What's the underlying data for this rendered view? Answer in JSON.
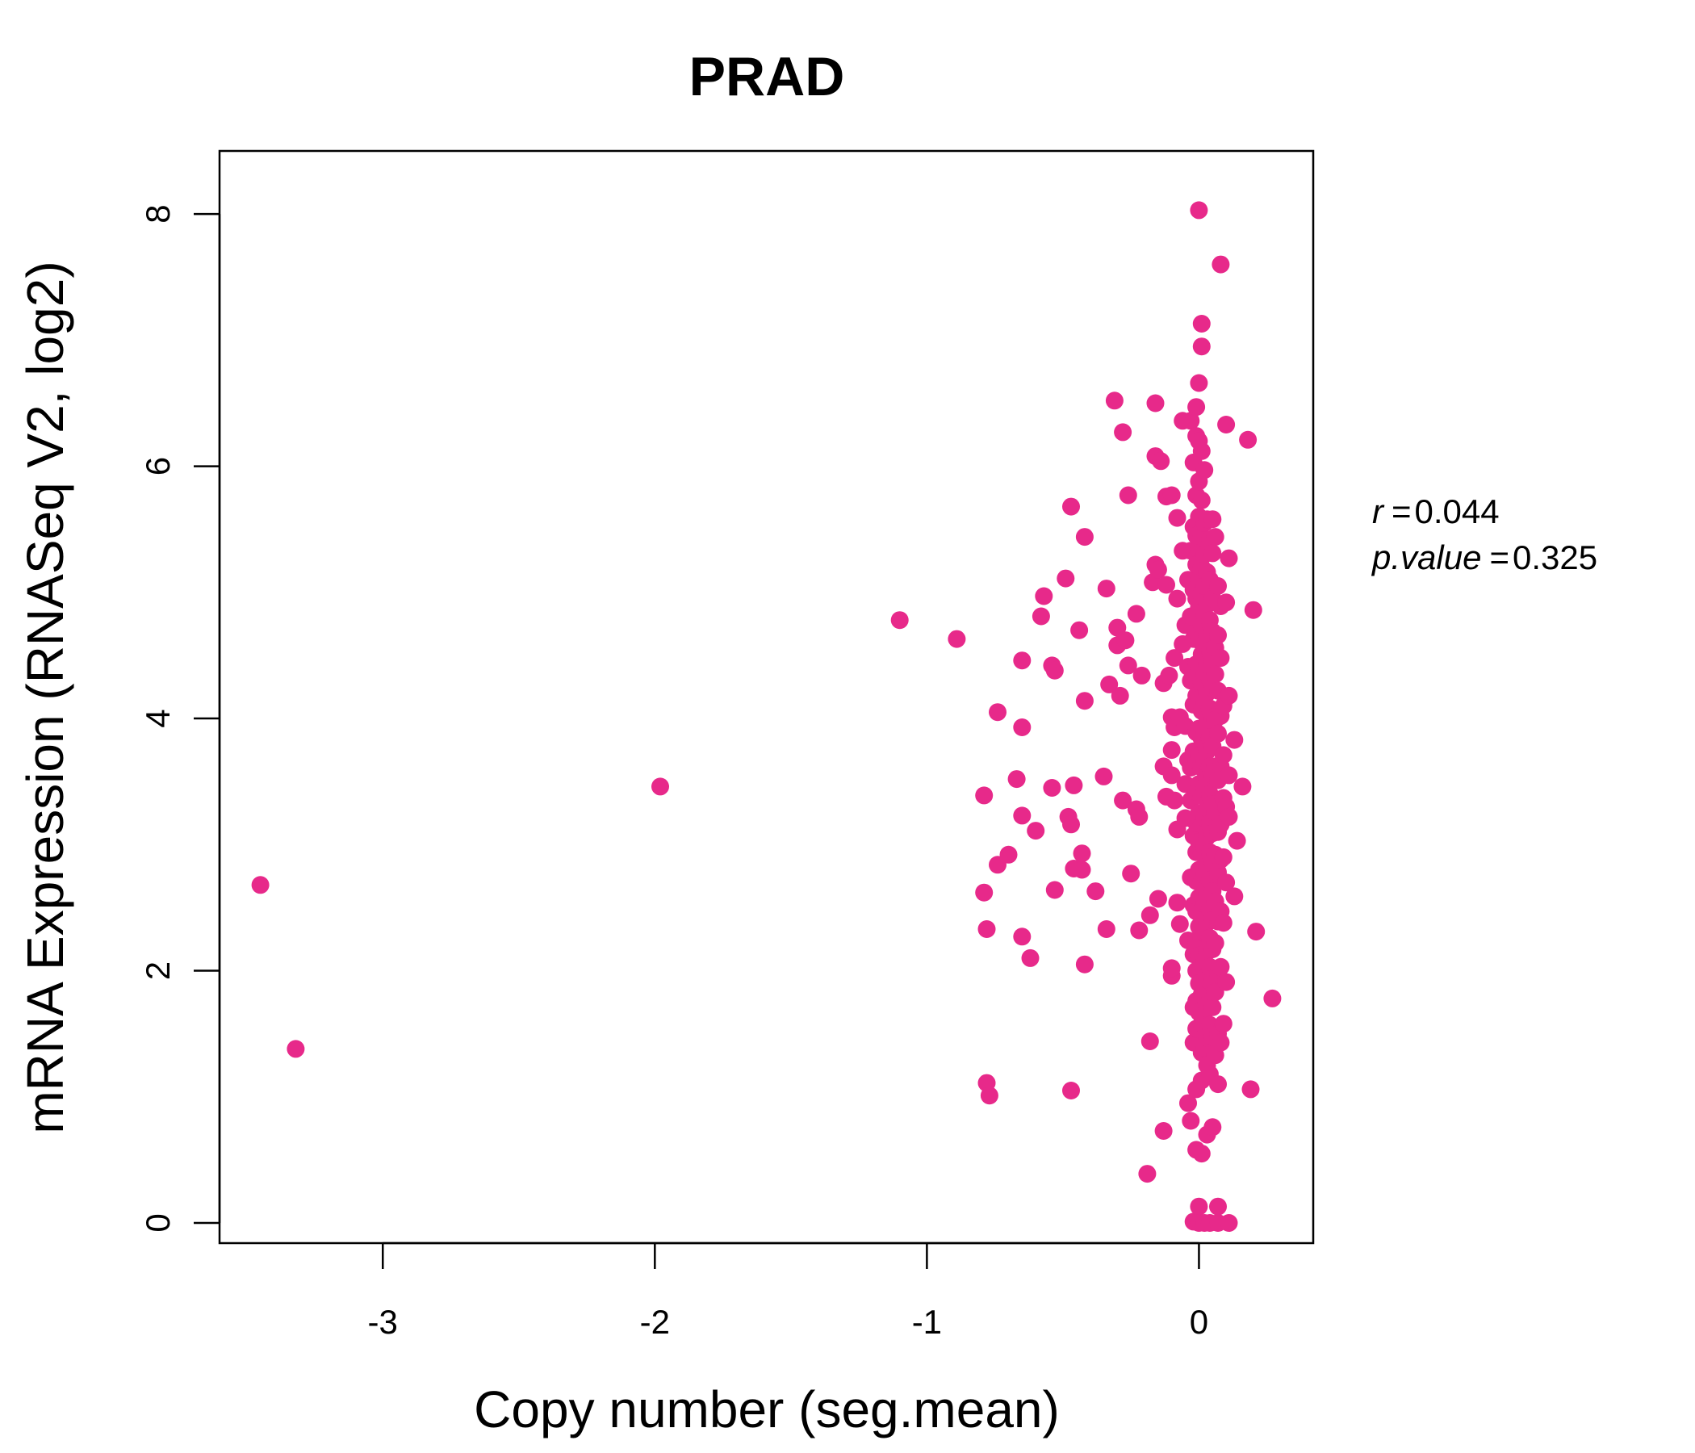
{
  "chart_data": {
    "type": "scatter",
    "title": "PRAD",
    "xlabel": "Copy number (seg.mean)",
    "ylabel": "mRNA Expression (RNASeq V2, log2)",
    "xlim": [
      -3.6,
      0.42
    ],
    "ylim": [
      -0.16,
      8.5
    ],
    "xticks": [
      -3,
      -2,
      -1,
      0
    ],
    "xtick_labels": [
      "-3",
      "-2",
      "-1",
      "0"
    ],
    "yticks": [
      0,
      2,
      4,
      6,
      8
    ],
    "ytick_labels": [
      "0",
      "2",
      "4",
      "6",
      "8"
    ],
    "grid": false,
    "legend": "none",
    "point_color": "#E7298A",
    "title_color": "#E7298A",
    "stats": {
      "r_label": "r",
      "r_value": "0.044",
      "p_label": "p.value",
      "p_value": "0.325"
    },
    "points": [
      [
        -3.45,
        2.68
      ],
      [
        -3.32,
        1.38
      ],
      [
        -1.98,
        3.46
      ],
      [
        -1.1,
        4.78
      ],
      [
        -0.89,
        4.63
      ],
      [
        -0.79,
        3.39
      ],
      [
        -0.79,
        2.62
      ],
      [
        -0.78,
        2.33
      ],
      [
        -0.78,
        1.11
      ],
      [
        -0.77,
        1.01
      ],
      [
        -0.74,
        4.05
      ],
      [
        -0.74,
        2.84
      ],
      [
        -0.7,
        2.92
      ],
      [
        -0.67,
        3.52
      ],
      [
        -0.65,
        3.93
      ],
      [
        -0.65,
        4.46
      ],
      [
        -0.65,
        3.23
      ],
      [
        -0.65,
        2.27
      ],
      [
        -0.62,
        2.1
      ],
      [
        -0.6,
        3.11
      ],
      [
        -0.58,
        4.81
      ],
      [
        -0.57,
        4.97
      ],
      [
        -0.54,
        4.42
      ],
      [
        -0.54,
        3.45
      ],
      [
        -0.53,
        4.38
      ],
      [
        -0.53,
        2.64
      ],
      [
        -0.49,
        5.11
      ],
      [
        -0.48,
        3.22
      ],
      [
        -0.47,
        3.16
      ],
      [
        -0.47,
        1.05
      ],
      [
        -0.47,
        5.68
      ],
      [
        -0.46,
        2.81
      ],
      [
        -0.46,
        3.47
      ],
      [
        -0.44,
        4.7
      ],
      [
        -0.43,
        2.93
      ],
      [
        -0.43,
        2.8
      ],
      [
        -0.42,
        2.05
      ],
      [
        -0.42,
        4.14
      ],
      [
        -0.42,
        5.44
      ],
      [
        -0.38,
        2.63
      ],
      [
        -0.35,
        3.54
      ],
      [
        -0.34,
        5.03
      ],
      [
        -0.34,
        2.33
      ],
      [
        -0.33,
        4.27
      ],
      [
        -0.31,
        6.52
      ],
      [
        -0.3,
        4.58
      ],
      [
        -0.3,
        4.72
      ],
      [
        -0.29,
        4.18
      ],
      [
        -0.28,
        6.27
      ],
      [
        -0.28,
        3.35
      ],
      [
        -0.27,
        4.62
      ],
      [
        -0.26,
        5.77
      ],
      [
        -0.26,
        4.42
      ],
      [
        -0.25,
        2.77
      ],
      [
        -0.23,
        3.28
      ],
      [
        -0.23,
        4.83
      ],
      [
        -0.22,
        2.32
      ],
      [
        -0.22,
        3.22
      ],
      [
        -0.21,
        4.34
      ],
      [
        -0.19,
        0.39
      ],
      [
        -0.18,
        1.44
      ],
      [
        -0.18,
        2.44
      ],
      [
        -0.17,
        5.08
      ],
      [
        -0.16,
        5.22
      ],
      [
        -0.16,
        6.08
      ],
      [
        -0.16,
        6.5
      ],
      [
        -0.15,
        5.18
      ],
      [
        -0.15,
        2.57
      ],
      [
        -0.14,
        6.04
      ],
      [
        -0.13,
        0.73
      ],
      [
        -0.13,
        4.28
      ],
      [
        -0.13,
        3.62
      ],
      [
        -0.12,
        5.76
      ],
      [
        -0.12,
        3.38
      ],
      [
        -0.12,
        5.06
      ],
      [
        -0.11,
        4.34
      ],
      [
        -0.1,
        5.77
      ],
      [
        -0.1,
        4.01
      ],
      [
        -0.1,
        3.75
      ],
      [
        -0.1,
        3.55
      ],
      [
        -0.1,
        1.96
      ],
      [
        -0.1,
        2.02
      ],
      [
        -0.09,
        3.35
      ],
      [
        -0.09,
        4.48
      ],
      [
        -0.09,
        3.93
      ],
      [
        -0.08,
        5.59
      ],
      [
        -0.08,
        4.95
      ],
      [
        -0.08,
        3.12
      ],
      [
        -0.08,
        2.54
      ],
      [
        -0.07,
        2.37
      ],
      [
        -0.07,
        4.01
      ],
      [
        -0.06,
        5.33
      ],
      [
        -0.06,
        6.36
      ],
      [
        -0.06,
        4.59
      ],
      [
        -0.05,
        4.74
      ],
      [
        -0.05,
        3.94
      ],
      [
        -0.05,
        3.48
      ],
      [
        -0.05,
        3.21
      ],
      [
        -0.04,
        5.1
      ],
      [
        -0.04,
        4.41
      ],
      [
        -0.04,
        3.67
      ],
      [
        -0.04,
        2.24
      ],
      [
        -0.04,
        0.95
      ],
      [
        -0.03,
        6.36
      ],
      [
        -0.03,
        5.33
      ],
      [
        -0.03,
        4.81
      ],
      [
        -0.03,
        4.3
      ],
      [
        -0.03,
        3.61
      ],
      [
        -0.03,
        3.35
      ],
      [
        -0.03,
        2.74
      ],
      [
        -0.03,
        0.81
      ],
      [
        -0.02,
        6.03
      ],
      [
        -0.02,
        5.52
      ],
      [
        -0.02,
        5.02
      ],
      [
        -0.02,
        4.63
      ],
      [
        -0.02,
        4.11
      ],
      [
        -0.02,
        3.74
      ],
      [
        -0.02,
        3.07
      ],
      [
        -0.02,
        2.52
      ],
      [
        -0.02,
        2.13
      ],
      [
        -0.02,
        1.71
      ],
      [
        -0.02,
        1.43
      ],
      [
        -0.02,
        0.01
      ],
      [
        -0.01,
        6.47
      ],
      [
        -0.01,
        6.24
      ],
      [
        -0.01,
        5.77
      ],
      [
        -0.01,
        5.45
      ],
      [
        -0.01,
        5.22
      ],
      [
        -0.01,
        4.95
      ],
      [
        -0.01,
        4.67
      ],
      [
        -0.01,
        4.43
      ],
      [
        -0.01,
        4.18
      ],
      [
        -0.01,
        3.89
      ],
      [
        -0.01,
        3.66
      ],
      [
        -0.01,
        3.42
      ],
      [
        -0.01,
        3.17
      ],
      [
        -0.01,
        2.94
      ],
      [
        -0.01,
        2.71
      ],
      [
        -0.01,
        2.47
      ],
      [
        -0.01,
        2.24
      ],
      [
        -0.01,
        2.0
      ],
      [
        -0.01,
        1.76
      ],
      [
        -0.01,
        1.54
      ],
      [
        -0.01,
        1.06
      ],
      [
        -0.01,
        0.58
      ],
      [
        0.0,
        8.03
      ],
      [
        0.0,
        6.66
      ],
      [
        0.0,
        6.2
      ],
      [
        0.0,
        5.88
      ],
      [
        0.0,
        5.6
      ],
      [
        0.0,
        5.35
      ],
      [
        0.0,
        5.1
      ],
      [
        0.0,
        4.88
      ],
      [
        0.0,
        4.62
      ],
      [
        0.0,
        4.4
      ],
      [
        0.0,
        4.15
      ],
      [
        0.0,
        3.92
      ],
      [
        0.0,
        3.7
      ],
      [
        0.0,
        3.48
      ],
      [
        0.0,
        3.25
      ],
      [
        0.0,
        3.02
      ],
      [
        0.0,
        2.8
      ],
      [
        0.0,
        2.58
      ],
      [
        0.0,
        2.35
      ],
      [
        0.0,
        2.12
      ],
      [
        0.0,
        1.9
      ],
      [
        0.0,
        1.67
      ],
      [
        0.0,
        0.13
      ],
      [
        0.0,
        0.0
      ],
      [
        0.01,
        7.13
      ],
      [
        0.01,
        6.95
      ],
      [
        0.01,
        6.12
      ],
      [
        0.01,
        5.73
      ],
      [
        0.01,
        5.44
      ],
      [
        0.01,
        5.2
      ],
      [
        0.01,
        4.97
      ],
      [
        0.01,
        4.74
      ],
      [
        0.01,
        4.51
      ],
      [
        0.01,
        4.29
      ],
      [
        0.01,
        4.06
      ],
      [
        0.01,
        3.84
      ],
      [
        0.01,
        3.61
      ],
      [
        0.01,
        3.39
      ],
      [
        0.01,
        3.16
      ],
      [
        0.01,
        2.93
      ],
      [
        0.01,
        2.71
      ],
      [
        0.01,
        2.48
      ],
      [
        0.01,
        2.26
      ],
      [
        0.01,
        2.03
      ],
      [
        0.01,
        1.81
      ],
      [
        0.01,
        1.58
      ],
      [
        0.01,
        1.35
      ],
      [
        0.01,
        1.13
      ],
      [
        0.01,
        0.55
      ],
      [
        0.02,
        5.97
      ],
      [
        0.02,
        5.55
      ],
      [
        0.02,
        5.3
      ],
      [
        0.02,
        5.05
      ],
      [
        0.02,
        4.82
      ],
      [
        0.02,
        4.58
      ],
      [
        0.02,
        4.35
      ],
      [
        0.02,
        4.12
      ],
      [
        0.02,
        3.89
      ],
      [
        0.02,
        3.66
      ],
      [
        0.02,
        3.44
      ],
      [
        0.02,
        3.21
      ],
      [
        0.02,
        2.98
      ],
      [
        0.02,
        2.76
      ],
      [
        0.02,
        2.53
      ],
      [
        0.02,
        2.3
      ],
      [
        0.02,
        2.07
      ],
      [
        0.02,
        1.84
      ],
      [
        0.02,
        1.61
      ],
      [
        0.02,
        1.39
      ],
      [
        0.02,
        0.0
      ],
      [
        0.03,
        5.58
      ],
      [
        0.03,
        5.16
      ],
      [
        0.03,
        4.9
      ],
      [
        0.03,
        4.66
      ],
      [
        0.03,
        4.43
      ],
      [
        0.03,
        4.2
      ],
      [
        0.03,
        3.97
      ],
      [
        0.03,
        3.74
      ],
      [
        0.03,
        3.52
      ],
      [
        0.03,
        3.29
      ],
      [
        0.03,
        3.06
      ],
      [
        0.03,
        2.83
      ],
      [
        0.03,
        2.61
      ],
      [
        0.03,
        2.38
      ],
      [
        0.03,
        2.15
      ],
      [
        0.03,
        1.93
      ],
      [
        0.03,
        1.7
      ],
      [
        0.03,
        1.47
      ],
      [
        0.03,
        1.25
      ],
      [
        0.03,
        0.7
      ],
      [
        0.04,
        5.42
      ],
      [
        0.04,
        5.1
      ],
      [
        0.04,
        4.78
      ],
      [
        0.04,
        4.54
      ],
      [
        0.04,
        4.31
      ],
      [
        0.04,
        4.08
      ],
      [
        0.04,
        3.85
      ],
      [
        0.04,
        3.62
      ],
      [
        0.04,
        3.4
      ],
      [
        0.04,
        3.17
      ],
      [
        0.04,
        2.94
      ],
      [
        0.04,
        2.72
      ],
      [
        0.04,
        2.49
      ],
      [
        0.04,
        2.26
      ],
      [
        0.04,
        2.03
      ],
      [
        0.04,
        1.8
      ],
      [
        0.04,
        1.57
      ],
      [
        0.04,
        1.18
      ],
      [
        0.04,
        0.0
      ],
      [
        0.05,
        5.58
      ],
      [
        0.05,
        5.31
      ],
      [
        0.05,
        4.95
      ],
      [
        0.05,
        4.69
      ],
      [
        0.05,
        4.46
      ],
      [
        0.05,
        4.24
      ],
      [
        0.05,
        4.01
      ],
      [
        0.05,
        3.78
      ],
      [
        0.05,
        3.55
      ],
      [
        0.05,
        3.32
      ],
      [
        0.05,
        3.09
      ],
      [
        0.05,
        2.86
      ],
      [
        0.05,
        2.63
      ],
      [
        0.05,
        2.4
      ],
      [
        0.05,
        2.17
      ],
      [
        0.05,
        1.94
      ],
      [
        0.05,
        1.71
      ],
      [
        0.05,
        1.48
      ],
      [
        0.05,
        0.76
      ],
      [
        0.06,
        5.44
      ],
      [
        0.06,
        4.56
      ],
      [
        0.06,
        4.35
      ],
      [
        0.06,
        3.99
      ],
      [
        0.06,
        3.62
      ],
      [
        0.06,
        3.26
      ],
      [
        0.06,
        2.92
      ],
      [
        0.06,
        2.55
      ],
      [
        0.06,
        2.22
      ],
      [
        0.06,
        1.83
      ],
      [
        0.06,
        1.33
      ],
      [
        0.07,
        5.05
      ],
      [
        0.07,
        4.66
      ],
      [
        0.07,
        4.22
      ],
      [
        0.07,
        3.88
      ],
      [
        0.07,
        3.51
      ],
      [
        0.07,
        3.1
      ],
      [
        0.07,
        2.78
      ],
      [
        0.07,
        2.39
      ],
      [
        0.07,
        1.97
      ],
      [
        0.07,
        1.5
      ],
      [
        0.07,
        1.1
      ],
      [
        0.07,
        0.13
      ],
      [
        0.07,
        0.0
      ],
      [
        0.08,
        7.6
      ],
      [
        0.08,
        4.89
      ],
      [
        0.08,
        4.48
      ],
      [
        0.08,
        4.02
      ],
      [
        0.08,
        3.62
      ],
      [
        0.08,
        3.16
      ],
      [
        0.08,
        2.88
      ],
      [
        0.08,
        2.47
      ],
      [
        0.08,
        2.03
      ],
      [
        0.08,
        1.43
      ],
      [
        0.09,
        4.1
      ],
      [
        0.09,
        3.71
      ],
      [
        0.09,
        3.37
      ],
      [
        0.09,
        2.9
      ],
      [
        0.09,
        2.38
      ],
      [
        0.09,
        1.58
      ],
      [
        0.1,
        6.33
      ],
      [
        0.1,
        4.92
      ],
      [
        0.1,
        3.3
      ],
      [
        0.1,
        2.7
      ],
      [
        0.1,
        1.91
      ],
      [
        0.11,
        5.27
      ],
      [
        0.11,
        4.18
      ],
      [
        0.11,
        3.55
      ],
      [
        0.11,
        3.22
      ],
      [
        0.11,
        0.0
      ],
      [
        0.13,
        3.83
      ],
      [
        0.13,
        2.59
      ],
      [
        0.14,
        3.03
      ],
      [
        0.16,
        3.46
      ],
      [
        0.18,
        6.21
      ],
      [
        0.19,
        1.06
      ],
      [
        0.2,
        4.86
      ],
      [
        0.21,
        2.31
      ],
      [
        0.27,
        1.78
      ]
    ]
  }
}
